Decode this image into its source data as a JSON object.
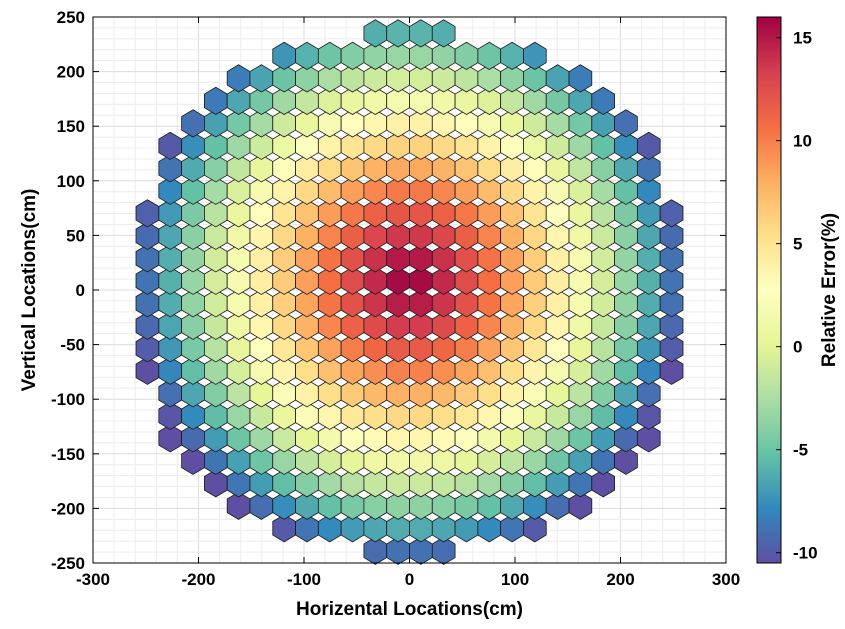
{
  "chart_data": {
    "type": "heatmap",
    "subtype": "hexagonal-core-map",
    "title": "",
    "xlabel": "Horizental Locations(cm)",
    "ylabel": "Vertical Locations(cm)",
    "colorbar_label": "Relative Error(%)",
    "xlim": [
      -300,
      300
    ],
    "ylim": [
      -250,
      250
    ],
    "xticks": [
      -300,
      -200,
      -100,
      0,
      100,
      200,
      300
    ],
    "yticks": [
      -250,
      -200,
      -150,
      -100,
      -50,
      0,
      50,
      100,
      150,
      200,
      250
    ],
    "clim": [
      -10.5,
      16
    ],
    "colorbar_ticks": [
      -10,
      -5,
      0,
      5,
      10,
      15
    ],
    "grid": "minor",
    "colormap": "spectral-reversed",
    "colormap_stops": [
      "#5e4fa2",
      "#3288bd",
      "#66c2a5",
      "#abdda4",
      "#e6f598",
      "#ffffbf",
      "#fee08b",
      "#fdae61",
      "#f46d43",
      "#d53e4f",
      "#9e0142"
    ],
    "assembly_pitch_cm": 21.6,
    "row_count": 24,
    "row_y": [
      -238.8,
      -218.2,
      -197.6,
      -177.0,
      -156.4,
      -135.8,
      -115.2,
      -94.6,
      -74.0,
      -53.4,
      -32.8,
      -12.2,
      8.4,
      29.0,
      49.6,
      70.2,
      90.8,
      111.4,
      132.0,
      152.6,
      173.2,
      193.8,
      214.4,
      235.0
    ],
    "row_half_counts": [
      2,
      6,
      8,
      9,
      10,
      11,
      11,
      11,
      12,
      12,
      12,
      12,
      12,
      12,
      12,
      12,
      11,
      11,
      11,
      10,
      9,
      8,
      6,
      2
    ],
    "value_model": "value = 16 - 25 * (r/250)^1.3, r = distance from (0, 10) cm",
    "value_range": [
      -10.0,
      15.5
    ]
  }
}
